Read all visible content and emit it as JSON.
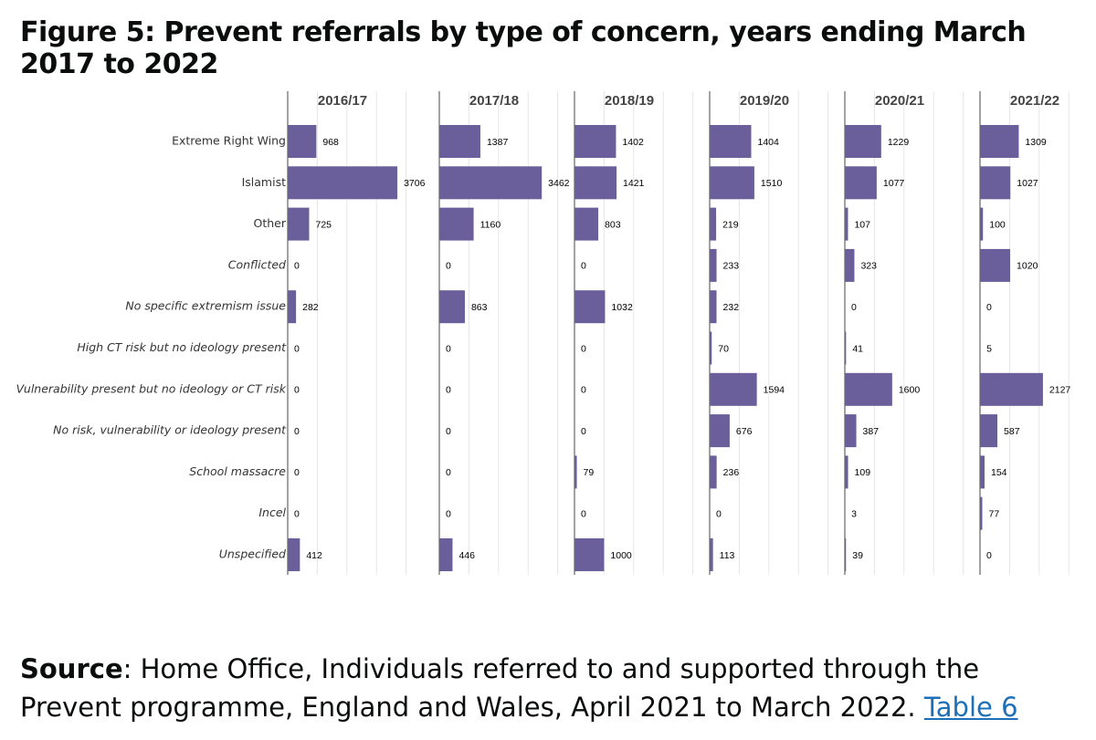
{
  "chart_data": {
    "type": "bar",
    "title": "Figure 5: Prevent referrals by type of concern, years ending March 2017 to 2022",
    "categories": [
      "Extreme Right Wing",
      "Islamist",
      "Other",
      "Conflicted",
      "No specific extremism issue",
      "High CT risk but no ideology present",
      "Vulnerability present but no ideology or CT risk",
      "No risk, vulnerability or ideology present",
      "School massacre",
      "Incel",
      "Unspecified"
    ],
    "color": "#6a5f9b",
    "xlim": [
      0,
      5000
    ],
    "xticks": [
      0,
      1000,
      2000,
      3000,
      4000
    ],
    "grid": true,
    "panels": [
      {
        "title": "2016/17",
        "values": [
          968,
          3706,
          725,
          0,
          282,
          0,
          0,
          0,
          0,
          0,
          412
        ]
      },
      {
        "title": "2017/18",
        "values": [
          1387,
          3462,
          1160,
          0,
          863,
          0,
          0,
          0,
          0,
          0,
          446
        ]
      },
      {
        "title": "2018/19",
        "values": [
          1402,
          1421,
          803,
          0,
          1032,
          0,
          0,
          0,
          79,
          0,
          1000
        ]
      },
      {
        "title": "2019/20",
        "values": [
          1404,
          1510,
          219,
          233,
          232,
          70,
          1594,
          676,
          236,
          0,
          113
        ]
      },
      {
        "title": "2020/21",
        "values": [
          1229,
          1077,
          107,
          323,
          0,
          41,
          1600,
          387,
          109,
          3,
          39
        ]
      },
      {
        "title": "2021/22",
        "values": [
          1309,
          1027,
          100,
          1020,
          0,
          5,
          2127,
          587,
          154,
          77,
          0
        ]
      }
    ]
  },
  "source": {
    "label": "Source",
    "text": ": Home Office, Individuals referred to and supported through the Prevent programme, England and Wales, April 2021 to March 2022.",
    "link": "Table 6"
  }
}
